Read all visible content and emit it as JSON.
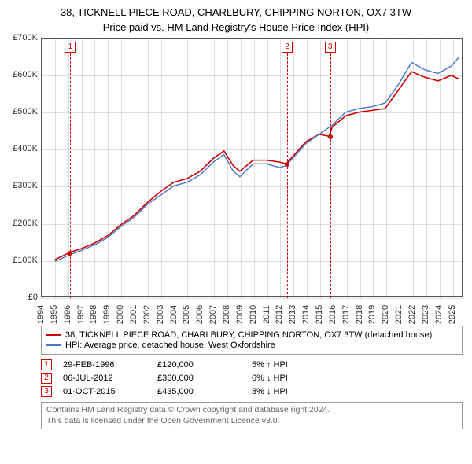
{
  "title": "38, TICKNELL PIECE ROAD, CHARLBURY, CHIPPING NORTON, OX7 3TW",
  "subtitle": "Price paid vs. HM Land Registry's House Price Index (HPI)",
  "chart": {
    "type": "line",
    "background_color": "#ffffff",
    "border_color": "#555555",
    "y": {
      "min": 0,
      "max": 700000,
      "step": 100000,
      "labels": [
        "£0",
        "£100K",
        "£200K",
        "£300K",
        "£400K",
        "£500K",
        "£600K",
        "£700K"
      ],
      "label_fontsize": 11,
      "label_color": "#333333"
    },
    "x": {
      "min": 1994,
      "max": 2025.8,
      "labels": [
        "1994",
        "1995",
        "1996",
        "1997",
        "1998",
        "1999",
        "2000",
        "2001",
        "2002",
        "2003",
        "2004",
        "2005",
        "2006",
        "2007",
        "2008",
        "2009",
        "2010",
        "2011",
        "2012",
        "2013",
        "2014",
        "2015",
        "2016",
        "2017",
        "2018",
        "2019",
        "2020",
        "2021",
        "2022",
        "2023",
        "2024",
        "2025"
      ],
      "label_fontsize": 11,
      "label_color": "#333333"
    },
    "grid_color": "#000000",
    "grid_opacity": 0.12,
    "series": [
      {
        "name": "38, TICKNELL PIECE ROAD, CHARLBURY, CHIPPING NORTON, OX7 3TW (detached house)",
        "color": "#cc0000",
        "line_width": 1.6,
        "data": [
          [
            1995.0,
            100000
          ],
          [
            1996.16,
            120000
          ],
          [
            1997,
            130000
          ],
          [
            1998,
            145000
          ],
          [
            1999,
            165000
          ],
          [
            2000,
            195000
          ],
          [
            2001,
            220000
          ],
          [
            2002,
            255000
          ],
          [
            2003,
            285000
          ],
          [
            2004,
            310000
          ],
          [
            2005,
            320000
          ],
          [
            2006,
            340000
          ],
          [
            2007,
            375000
          ],
          [
            2007.8,
            395000
          ],
          [
            2008.5,
            355000
          ],
          [
            2009,
            340000
          ],
          [
            2010,
            370000
          ],
          [
            2011,
            370000
          ],
          [
            2012,
            365000
          ],
          [
            2012.5,
            360000
          ],
          [
            2013,
            380000
          ],
          [
            2014,
            420000
          ],
          [
            2015,
            440000
          ],
          [
            2015.75,
            435000
          ],
          [
            2016,
            460000
          ],
          [
            2017,
            490000
          ],
          [
            2018,
            500000
          ],
          [
            2019,
            505000
          ],
          [
            2020,
            510000
          ],
          [
            2021,
            560000
          ],
          [
            2022,
            610000
          ],
          [
            2023,
            595000
          ],
          [
            2024,
            585000
          ],
          [
            2025,
            600000
          ],
          [
            2025.6,
            590000
          ]
        ]
      },
      {
        "name": "HPI: Average price, detached house, West Oxfordshire",
        "color": "#4a74c9",
        "line_width": 1.4,
        "data": [
          [
            1995.0,
            95000
          ],
          [
            1996.16,
            114000
          ],
          [
            1997,
            125000
          ],
          [
            1998,
            140000
          ],
          [
            1999,
            160000
          ],
          [
            2000,
            190000
          ],
          [
            2001,
            215000
          ],
          [
            2002,
            250000
          ],
          [
            2003,
            275000
          ],
          [
            2004,
            300000
          ],
          [
            2005,
            310000
          ],
          [
            2006,
            330000
          ],
          [
            2007,
            365000
          ],
          [
            2007.8,
            385000
          ],
          [
            2008.5,
            340000
          ],
          [
            2009,
            325000
          ],
          [
            2010,
            360000
          ],
          [
            2011,
            360000
          ],
          [
            2012,
            350000
          ],
          [
            2012.5,
            355000
          ],
          [
            2013,
            375000
          ],
          [
            2014,
            415000
          ],
          [
            2015,
            440000
          ],
          [
            2016,
            465000
          ],
          [
            2017,
            500000
          ],
          [
            2018,
            510000
          ],
          [
            2019,
            515000
          ],
          [
            2020,
            525000
          ],
          [
            2021,
            575000
          ],
          [
            2022,
            635000
          ],
          [
            2023,
            615000
          ],
          [
            2024,
            605000
          ],
          [
            2025,
            625000
          ],
          [
            2025.6,
            650000
          ]
        ]
      }
    ],
    "markers": [
      {
        "n": "1",
        "year": 1996.16,
        "color": "#cc0000"
      },
      {
        "n": "2",
        "year": 2012.51,
        "color": "#cc0000"
      },
      {
        "n": "3",
        "year": 2015.75,
        "color": "#cc0000"
      }
    ],
    "sale_dots": [
      {
        "year": 1996.16,
        "value": 120000,
        "color": "#cc0000"
      },
      {
        "year": 2012.51,
        "value": 360000,
        "color": "#cc0000"
      },
      {
        "year": 2015.75,
        "value": 435000,
        "color": "#cc0000"
      }
    ]
  },
  "legend": {
    "border_color": "#999999",
    "items": [
      {
        "color": "#cc0000",
        "label": "38, TICKNELL PIECE ROAD, CHARLBURY, CHIPPING NORTON, OX7 3TW (detached house)"
      },
      {
        "color": "#4a74c9",
        "label": "HPI: Average price, detached house, West Oxfordshire"
      }
    ]
  },
  "events": [
    {
      "n": "1",
      "color": "#cc0000",
      "date": "29-FEB-1996",
      "price": "£120,000",
      "hpi": "5% ↑ HPI"
    },
    {
      "n": "2",
      "color": "#cc0000",
      "date": "06-JUL-2012",
      "price": "£360,000",
      "hpi": "6% ↓ HPI"
    },
    {
      "n": "3",
      "color": "#cc0000",
      "date": "01-OCT-2015",
      "price": "£435,000",
      "hpi": "8% ↓ HPI"
    }
  ],
  "footer": {
    "border_color": "#999999",
    "text_color": "#666666",
    "line1": "Contains HM Land Registry data © Crown copyright and database right 2024.",
    "line2": "This data is licensed under the Open Government Licence v3.0."
  }
}
